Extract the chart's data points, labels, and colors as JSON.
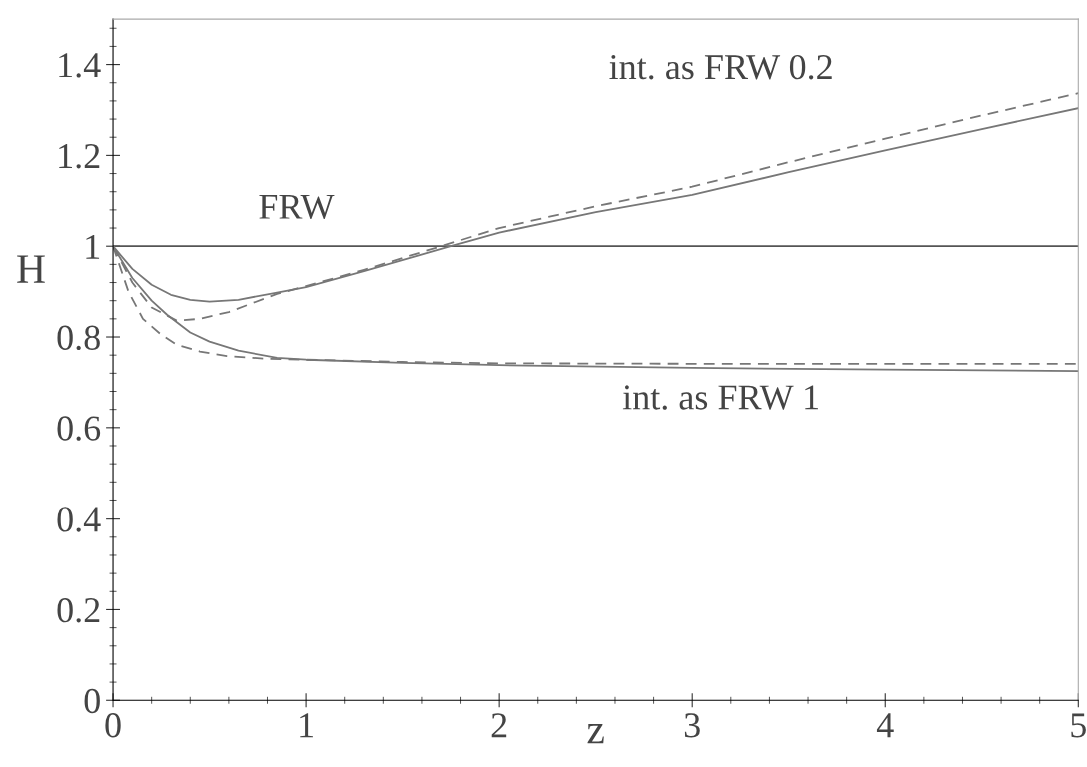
{
  "chart_data": {
    "type": "line",
    "xlabel": "z",
    "ylabel": "H",
    "xlim": [
      0,
      5
    ],
    "ylim": [
      0,
      1.5
    ],
    "xticks": [
      0,
      1,
      2,
      3,
      4,
      5
    ],
    "yticks": [
      0,
      0.2,
      0.4,
      0.6,
      0.8,
      1,
      1.2,
      1.4
    ],
    "grid": false,
    "legend": false,
    "series": [
      {
        "color": "#555555",
        "line_style": "solid",
        "x": [
          0,
          5
        ],
        "values": [
          1,
          1
        ]
      },
      {
        "color": "#777777",
        "line_style": "solid",
        "x": [
          0,
          0.1,
          0.2,
          0.3,
          0.4,
          0.5,
          0.65,
          0.85,
          1.0,
          1.3,
          1.75,
          2.0,
          2.5,
          3.0,
          3.5,
          4.0,
          4.5,
          5.0
        ],
        "values": [
          1,
          0.95,
          0.915,
          0.893,
          0.882,
          0.878,
          0.882,
          0.898,
          0.91,
          0.945,
          1.0,
          1.03,
          1.075,
          1.113,
          1.163,
          1.211,
          1.258,
          1.304
        ]
      },
      {
        "color": "#777777",
        "line_style": "dashed",
        "x": [
          0,
          0.1,
          0.2,
          0.33,
          0.45,
          0.6,
          0.85,
          1.0,
          1.3,
          1.7,
          2.0,
          2.5,
          3.0,
          3.5,
          4.0,
          4.5,
          5.0
        ],
        "values": [
          1,
          0.92,
          0.865,
          0.836,
          0.84,
          0.855,
          0.895,
          0.912,
          0.948,
          1.0,
          1.04,
          1.088,
          1.131,
          1.185,
          1.237,
          1.288,
          1.337
        ]
      },
      {
        "color": "#777777",
        "line_style": "solid",
        "x": [
          0,
          0.1,
          0.2,
          0.28,
          0.4,
          0.5,
          0.65,
          0.85,
          1.0,
          1.5,
          2.0,
          3.0,
          4.0,
          5.0
        ],
        "values": [
          1,
          0.93,
          0.88,
          0.849,
          0.81,
          0.79,
          0.77,
          0.754,
          0.75,
          0.743,
          0.738,
          0.732,
          0.728,
          0.725
        ]
      },
      {
        "color": "#777777",
        "line_style": "dashed",
        "x": [
          0,
          0.08,
          0.155,
          0.25,
          0.33,
          0.45,
          0.59,
          0.8,
          1.0,
          1.5,
          2.0,
          3.0,
          4.0,
          5.0
        ],
        "values": [
          1,
          0.9,
          0.84,
          0.805,
          0.783,
          0.768,
          0.758,
          0.752,
          0.75,
          0.745,
          0.742,
          0.741,
          0.741,
          0.741
        ]
      }
    ],
    "annotations": [
      "FRW",
      "int. as FRW 0.2",
      "int. as FRW 1"
    ]
  }
}
